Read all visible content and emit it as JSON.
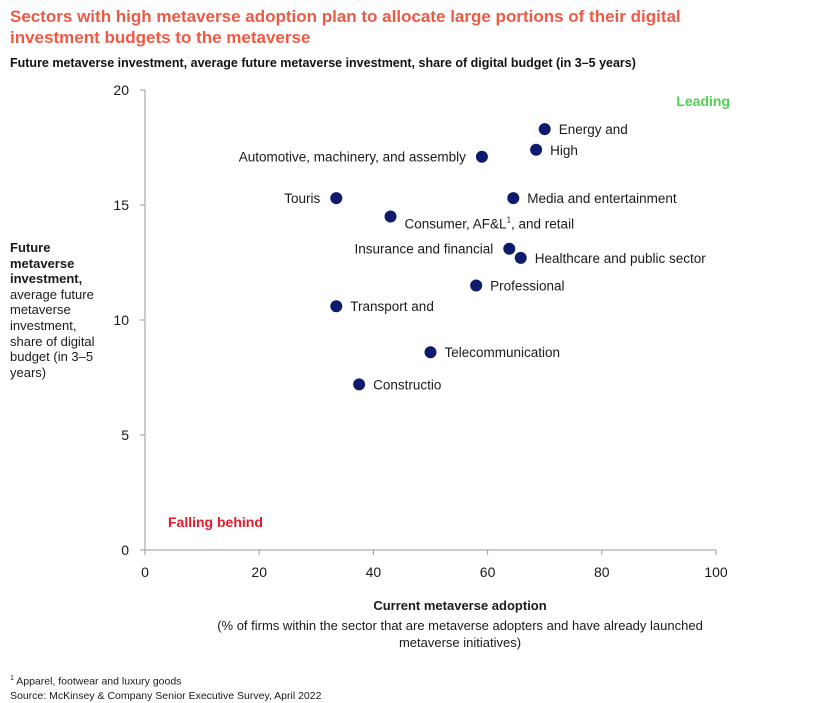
{
  "title": "Sectors with high metaverse adoption plan to allocate large portions of their digital investment budgets to the metaverse",
  "subtitle": "Future metaverse investment, average future metaverse investment, share of digital budget (in 3–5 years)",
  "y_axis_label": {
    "bold": "Future metaverse investment,",
    "rest": "average future metaverse investment, share of digital budget (in 3–5 years)"
  },
  "x_axis_label": {
    "bold": "Current metaverse adoption",
    "rest": "(% of firms within the sector that are metaverse adopters and have already launched metaverse initiatives)"
  },
  "footnote": {
    "marker": "1",
    "note": " Apparel, footwear and luxury goods",
    "source": "Source: McKinsey & Company Senior Executive Survey, April 2022"
  },
  "colors": {
    "title": "#ef5a45",
    "point": "#0d1a6e",
    "leading": "#4cd24c",
    "falling_behind": "#e8192c",
    "axis": "#9a9a9a"
  },
  "chart_data": {
    "type": "scatter",
    "xlim": [
      0,
      100
    ],
    "ylim": [
      0,
      20
    ],
    "x_ticks": [
      0,
      20,
      40,
      60,
      80,
      100
    ],
    "y_ticks": [
      0,
      5,
      10,
      15,
      20
    ],
    "grid": false,
    "annotations": [
      {
        "text": "Leading",
        "position": "top-right",
        "color": "#4cd24c"
      },
      {
        "text": "Falling behind",
        "position": "bottom-left",
        "color": "#e8192c"
      }
    ],
    "points": [
      {
        "label": "Energy and",
        "x": 70,
        "y": 18.3,
        "side": "right"
      },
      {
        "label": "High",
        "x": 68.5,
        "y": 17.4,
        "side": "right"
      },
      {
        "label": "Automotive, machinery, and assembly",
        "x": 59,
        "y": 17.1,
        "side": "left"
      },
      {
        "label": "Touris",
        "x": 33.5,
        "y": 15.3,
        "side": "left"
      },
      {
        "label": "Media and entertainment",
        "x": 64.5,
        "y": 15.3,
        "side": "right"
      },
      {
        "label": "Consumer, AF&L",
        "sup": "1",
        "suffix": ", and retail",
        "x": 43,
        "y": 14.5,
        "side": "right-below"
      },
      {
        "label": "Insurance and financial",
        "x": 63.8,
        "y": 13.1,
        "side": "left"
      },
      {
        "label": "Healthcare and public sector",
        "x": 65.8,
        "y": 12.7,
        "side": "right"
      },
      {
        "label": "Professional",
        "x": 58,
        "y": 11.5,
        "side": "right"
      },
      {
        "label": "Transport and",
        "x": 33.5,
        "y": 10.6,
        "side": "right"
      },
      {
        "label": "Telecommunication",
        "x": 50,
        "y": 8.6,
        "side": "right"
      },
      {
        "label": "Constructio",
        "x": 37.5,
        "y": 7.2,
        "side": "right"
      }
    ]
  }
}
